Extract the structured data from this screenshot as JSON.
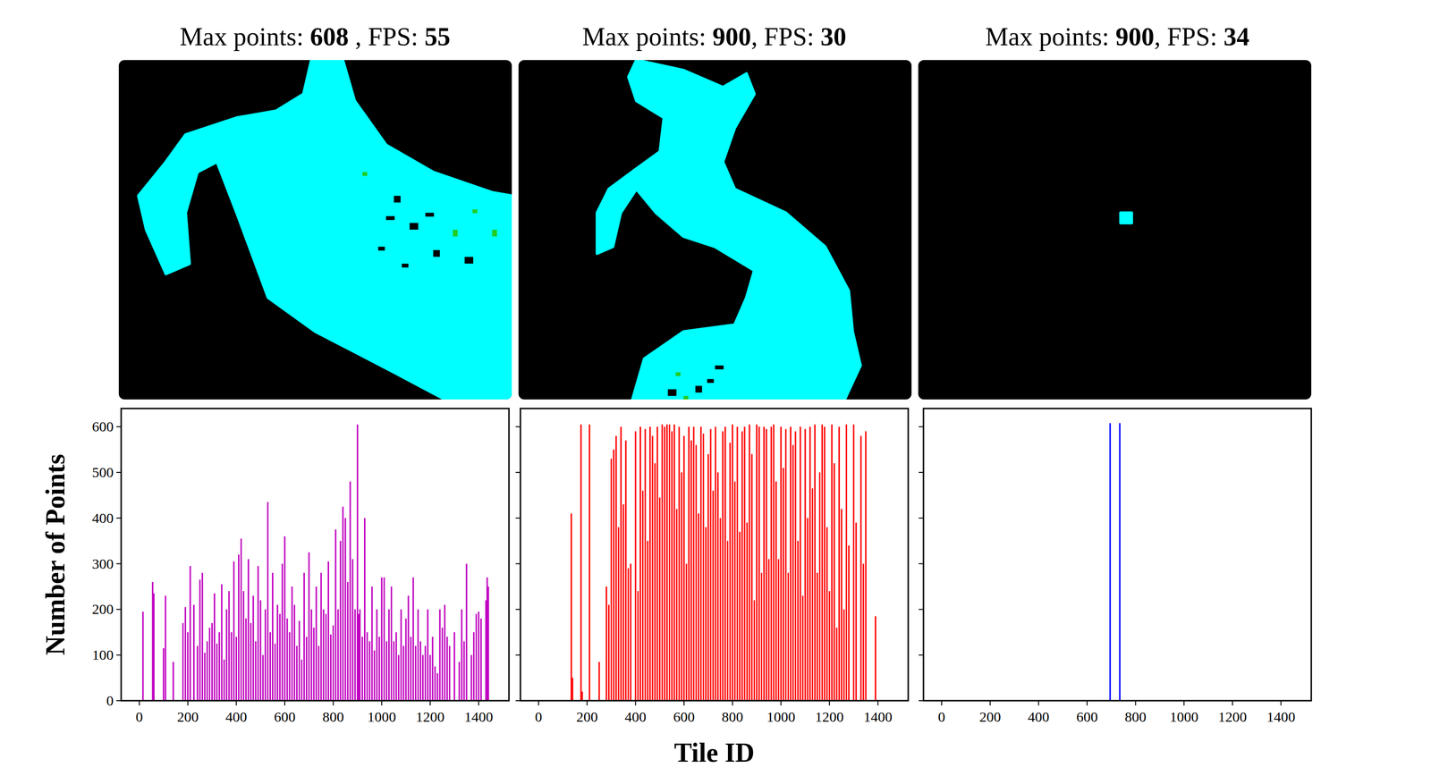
{
  "chart_data": [
    {
      "type": "bar",
      "title": "Max points: 608 , FPS: 55",
      "y_label": "Number of Points",
      "color": "#c000c0",
      "xlim": [
        -75,
        1525
      ],
      "ylim": [
        0,
        640
      ],
      "xticks": [
        0,
        200,
        400,
        600,
        800,
        1000,
        1200,
        1400
      ],
      "yticks": [
        0,
        100,
        200,
        300,
        400,
        500,
        600
      ],
      "x": [
        15,
        55,
        60,
        100,
        108,
        140,
        180,
        190,
        200,
        210,
        225,
        240,
        250,
        260,
        270,
        280,
        290,
        300,
        310,
        320,
        330,
        340,
        350,
        360,
        370,
        380,
        390,
        400,
        410,
        420,
        430,
        440,
        450,
        460,
        470,
        480,
        490,
        500,
        510,
        520,
        530,
        540,
        550,
        560,
        570,
        580,
        590,
        600,
        610,
        620,
        630,
        640,
        650,
        660,
        670,
        680,
        690,
        700,
        710,
        720,
        730,
        740,
        750,
        760,
        770,
        780,
        790,
        800,
        810,
        820,
        830,
        840,
        850,
        860,
        870,
        880,
        890,
        900,
        905,
        910,
        920,
        930,
        940,
        950,
        960,
        970,
        980,
        990,
        1000,
        1010,
        1020,
        1030,
        1040,
        1050,
        1060,
        1070,
        1080,
        1090,
        1100,
        1110,
        1120,
        1130,
        1140,
        1150,
        1160,
        1170,
        1180,
        1190,
        1200,
        1210,
        1220,
        1230,
        1240,
        1250,
        1260,
        1270,
        1280,
        1300,
        1320,
        1330,
        1340,
        1350,
        1370,
        1380,
        1390,
        1400,
        1410,
        1430,
        1435,
        1440
      ],
      "values": [
        195,
        260,
        235,
        115,
        230,
        85,
        170,
        205,
        150,
        295,
        210,
        120,
        265,
        280,
        105,
        130,
        160,
        170,
        235,
        125,
        150,
        255,
        90,
        200,
        240,
        150,
        305,
        140,
        320,
        355,
        240,
        180,
        310,
        170,
        230,
        130,
        295,
        220,
        100,
        200,
        435,
        150,
        280,
        125,
        210,
        190,
        300,
        360,
        180,
        150,
        250,
        210,
        120,
        175,
        90,
        280,
        140,
        325,
        200,
        160,
        250,
        120,
        280,
        200,
        190,
        305,
        145,
        165,
        375,
        200,
        350,
        425,
        400,
        260,
        480,
        310,
        200,
        605,
        190,
        200,
        140,
        400,
        150,
        130,
        250,
        110,
        200,
        140,
        270,
        270,
        130,
        200,
        250,
        130,
        150,
        100,
        200,
        120,
        180,
        230,
        140,
        270,
        120,
        200,
        130,
        100,
        120,
        200,
        100,
        140,
        75,
        60,
        200,
        160,
        210,
        140,
        120,
        150,
        85,
        200,
        130,
        300,
        100,
        150,
        190,
        195,
        180,
        220,
        270,
        250
      ]
    },
    {
      "type": "bar",
      "title": "Max points: 900, FPS: 30",
      "x_label": "Tile ID",
      "color": "#ff0000",
      "tick_labels": "x",
      "xlim": [
        -75,
        1525
      ],
      "ylim": [
        0,
        640
      ],
      "xticks": [
        0,
        200,
        400,
        600,
        800,
        1000,
        1200,
        1400
      ],
      "yticks": [
        0,
        100,
        200,
        300,
        400,
        500,
        600
      ],
      "x": [
        135,
        140,
        175,
        180,
        210,
        250,
        280,
        290,
        300,
        310,
        320,
        330,
        340,
        350,
        360,
        370,
        380,
        400,
        410,
        420,
        430,
        440,
        450,
        460,
        470,
        480,
        490,
        500,
        510,
        520,
        530,
        540,
        550,
        560,
        570,
        580,
        590,
        600,
        610,
        620,
        630,
        640,
        650,
        660,
        670,
        680,
        690,
        700,
        710,
        720,
        730,
        740,
        750,
        760,
        770,
        780,
        790,
        800,
        810,
        820,
        830,
        840,
        850,
        860,
        870,
        880,
        890,
        900,
        910,
        920,
        930,
        940,
        950,
        960,
        970,
        980,
        990,
        1000,
        1010,
        1020,
        1030,
        1040,
        1050,
        1060,
        1070,
        1080,
        1090,
        1100,
        1110,
        1120,
        1130,
        1140,
        1150,
        1160,
        1170,
        1180,
        1190,
        1200,
        1210,
        1220,
        1230,
        1240,
        1250,
        1260,
        1270,
        1280,
        1300,
        1310,
        1330,
        1340,
        1350,
        1390
      ],
      "values": [
        410,
        50,
        605,
        20,
        605,
        85,
        250,
        210,
        530,
        550,
        580,
        380,
        600,
        430,
        570,
        290,
        300,
        590,
        240,
        600,
        460,
        595,
        350,
        600,
        580,
        520,
        600,
        445,
        605,
        600,
        605,
        605,
        590,
        605,
        420,
        600,
        500,
        580,
        300,
        600,
        570,
        600,
        560,
        410,
        600,
        585,
        380,
        540,
        595,
        460,
        600,
        500,
        400,
        590,
        600,
        350,
        565,
        605,
        480,
        600,
        370,
        590,
        600,
        390,
        605,
        540,
        220,
        605,
        600,
        280,
        600,
        595,
        310,
        600,
        605,
        480,
        310,
        600,
        510,
        595,
        280,
        600,
        560,
        590,
        350,
        600,
        230,
        595,
        400,
        600,
        465,
        605,
        280,
        500,
        605,
        600,
        380,
        240,
        605,
        520,
        160,
        600,
        420,
        200,
        605,
        340,
        605,
        390,
        580,
        300,
        590,
        185
      ]
    },
    {
      "type": "bar",
      "title": "Max points: 900, FPS: 34",
      "color": "#0000ff",
      "tick_labels": "x",
      "xlim": [
        -75,
        1525
      ],
      "ylim": [
        0,
        640
      ],
      "xticks": [
        0,
        200,
        400,
        600,
        800,
        1000,
        1200,
        1400
      ],
      "yticks": [
        0,
        100,
        200,
        300,
        400,
        500,
        600
      ],
      "x": [
        695,
        735
      ],
      "values": [
        608,
        608
      ]
    }
  ]
}
